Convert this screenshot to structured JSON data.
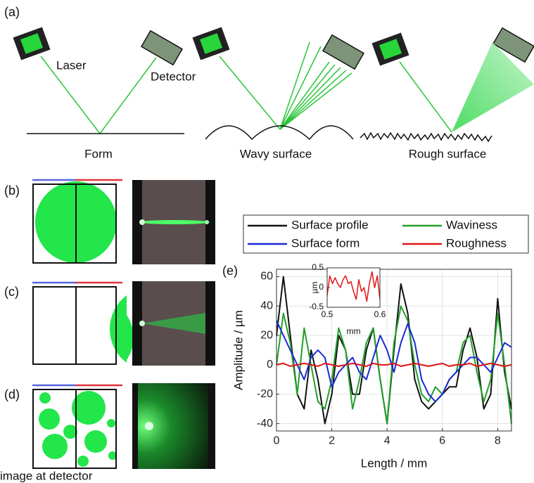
{
  "figure": {
    "panel_labels": [
      "(a)",
      "(b)",
      "(c)",
      "(d)",
      "(e)"
    ],
    "laser": "Laser",
    "detector": "Detector",
    "surfaces": [
      "Form",
      "Wavy surface",
      "Rough surface"
    ],
    "detector_image": "image at detector"
  },
  "chart_data": [
    {
      "type": "line",
      "x_label": "Length  / mm",
      "y_label": "Amplitude / µm",
      "x": [
        0,
        0.25,
        0.5,
        0.75,
        1,
        1.25,
        1.5,
        1.75,
        2,
        2.25,
        2.5,
        2.75,
        3,
        3.25,
        3.5,
        3.75,
        4,
        4.25,
        4.5,
        4.75,
        5,
        5.25,
        5.5,
        5.75,
        6,
        6.25,
        6.5,
        6.75,
        7,
        7.25,
        7.5,
        7.75,
        8,
        8.25,
        8.5
      ],
      "series": [
        {
          "name": "Surface profile",
          "color": "#111111",
          "values": [
            20,
            60,
            20,
            -20,
            -30,
            10,
            -10,
            -40,
            -20,
            20,
            10,
            -20,
            -20,
            10,
            25,
            -10,
            -40,
            10,
            55,
            35,
            -10,
            -25,
            -30,
            -25,
            -20,
            -15,
            -15,
            10,
            25,
            5,
            -30,
            -20,
            45,
            -5,
            -30
          ]
        },
        {
          "name": "Waviness",
          "color": "#22a02a",
          "values": [
            0,
            35,
            15,
            -20,
            25,
            0,
            -25,
            -30,
            -10,
            25,
            10,
            -30,
            -10,
            15,
            25,
            -10,
            -40,
            15,
            40,
            30,
            0,
            -20,
            -25,
            -15,
            -20,
            -10,
            -5,
            15,
            20,
            -5,
            -25,
            -10,
            35,
            0,
            -40
          ]
        },
        {
          "name": "Surface form",
          "color": "#1a2ad6",
          "values": [
            30,
            20,
            10,
            0,
            -10,
            5,
            10,
            5,
            -15,
            -5,
            0,
            5,
            -5,
            -10,
            5,
            20,
            10,
            -5,
            15,
            28,
            15,
            -10,
            -20,
            -25,
            -20,
            -10,
            -5,
            0,
            5,
            5,
            0,
            -5,
            5,
            15,
            12
          ]
        },
        {
          "name": "Roughness",
          "color": "#e01616",
          "values": [
            0,
            1,
            -1,
            0,
            1,
            0,
            -1,
            1,
            0,
            -1,
            0,
            1,
            0,
            -1,
            1,
            0,
            0,
            1,
            -1,
            0,
            1,
            0,
            -1,
            0,
            1,
            -1,
            0,
            0,
            1,
            -1,
            0,
            1,
            0,
            -1,
            0
          ]
        }
      ],
      "xlim": [
        0,
        8.5
      ],
      "xticks": [
        0,
        2,
        4,
        6,
        8
      ],
      "ylim": [
        -45,
        65
      ],
      "yticks": [
        -40,
        -20,
        0,
        20,
        40,
        60
      ],
      "grid": true,
      "legend": "top"
    },
    {
      "type": "line",
      "x_label": "mm",
      "y_label": "µm",
      "x": [
        0.5,
        0.505,
        0.51,
        0.515,
        0.52,
        0.525,
        0.53,
        0.535,
        0.54,
        0.545,
        0.55,
        0.555,
        0.56,
        0.565,
        0.57,
        0.575,
        0.58,
        0.585,
        0.59,
        0.595,
        0.6
      ],
      "series": [
        {
          "name": "Roughness",
          "color": "#e01616",
          "values": [
            -0.2,
            0.3,
            0.1,
            0.25,
            0.1,
            0,
            0.2,
            0.3,
            0.1,
            0.15,
            -0.1,
            -0.3,
            0.2,
            -0.1,
            0,
            -0.35,
            0.1,
            0.4,
            0,
            0.3,
            -0.3
          ]
        }
      ],
      "xlim": [
        0.5,
        0.6
      ],
      "xticks": [
        0.5,
        0.6
      ],
      "ylim": [
        -0.5,
        0.5
      ],
      "yticks": [
        -0.5,
        0,
        0.5
      ],
      "grid": false
    }
  ]
}
